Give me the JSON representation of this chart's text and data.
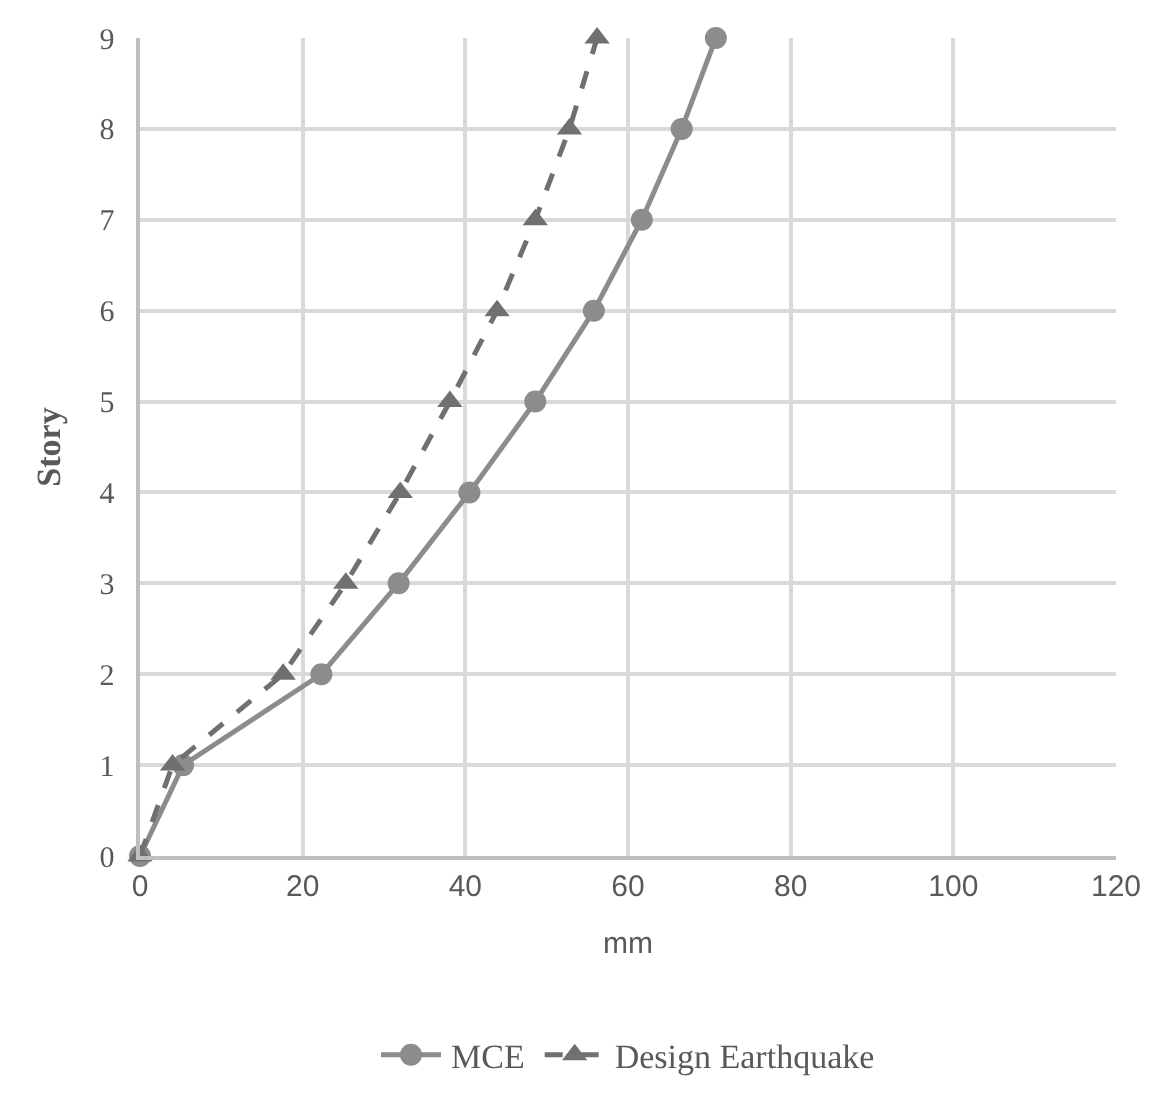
{
  "chart_data": {
    "type": "line",
    "xlabel": "mm",
    "ylabel": "Story",
    "xlim": [
      0,
      120
    ],
    "xticks": [
      0,
      20,
      40,
      60,
      80,
      100,
      120
    ],
    "ylim": [
      0,
      9
    ],
    "yticks": [
      0,
      1,
      2,
      3,
      4,
      5,
      6,
      7,
      8,
      9
    ],
    "grid": true,
    "legend": "bottom",
    "series": [
      {
        "name": "MCE",
        "color": "#8c8c8c",
        "marker": "circle",
        "line_style": "solid",
        "x": [
          0,
          5.3,
          22.3,
          31.8,
          40.5,
          48.6,
          55.8,
          61.7,
          66.6,
          70.8
        ],
        "values": [
          0,
          1,
          2,
          3,
          4,
          5,
          6,
          7,
          8,
          9
        ]
      },
      {
        "name": "Design Earthquake",
        "color": "#707070",
        "marker": "triangle",
        "line_style": "dashed",
        "x": [
          0,
          4,
          17.6,
          25.3,
          32,
          38.1,
          43.9,
          48.6,
          52.8,
          56.2
        ],
        "values": [
          0,
          1,
          2,
          3,
          4,
          5,
          6,
          7,
          8,
          9
        ]
      }
    ]
  }
}
